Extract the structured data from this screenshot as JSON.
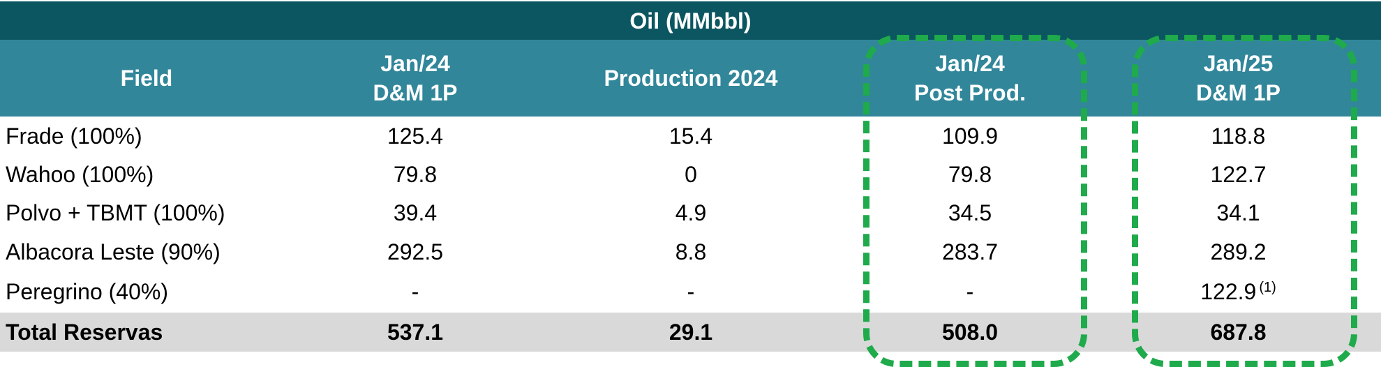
{
  "table": {
    "title": "Oil (MMbbl)",
    "header": [
      [
        "Field"
      ],
      [
        "Jan/24",
        "D&M 1P"
      ],
      [
        "Production 2024"
      ],
      [
        "Jan/24",
        "Post Prod."
      ],
      [
        "Jan/25",
        "D&M 1P"
      ]
    ],
    "rows": [
      [
        "Frade (100%)",
        "125.4",
        "15.4",
        "109.9",
        "118.8"
      ],
      [
        "Wahoo (100%)",
        "79.8",
        "0",
        "79.8",
        "122.7"
      ],
      [
        "Polvo + TBMT (100%)",
        "39.4",
        "4.9",
        "34.5",
        "34.1"
      ],
      [
        "Albacora Leste (90%)",
        "292.5",
        "8.8",
        "283.7",
        "289.2"
      ],
      [
        "Peregrino (40%)",
        "-",
        "-",
        "-",
        "122.9"
      ]
    ],
    "footnote_marker": "(1)",
    "total": [
      "Total Reservas",
      "537.1",
      "29.1",
      "508.0",
      "687.8"
    ]
  }
}
